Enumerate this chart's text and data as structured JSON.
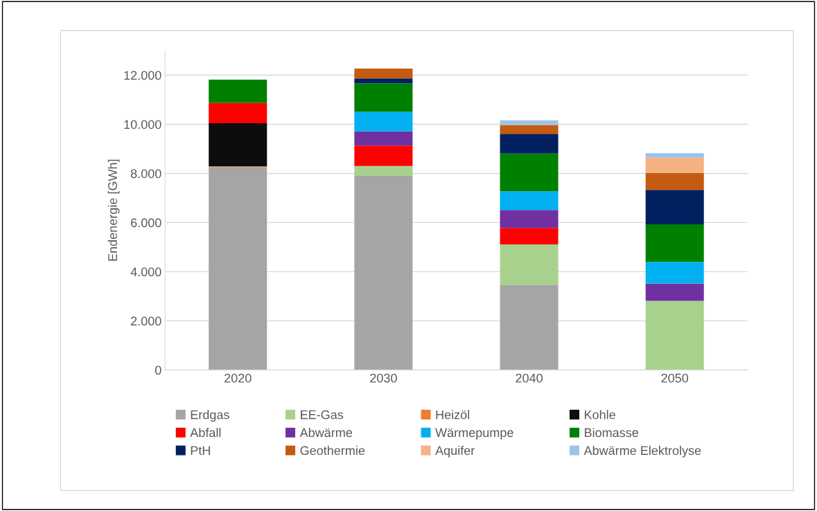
{
  "chart_data": {
    "type": "bar",
    "stacked": true,
    "ylabel": "Endenergie [GWh]",
    "categories": [
      "2020",
      "2030",
      "2040",
      "2050"
    ],
    "ylim": [
      0,
      13000
    ],
    "yticks": [
      0,
      {
        "value": 2000,
        "label": "2.000"
      },
      {
        "value": 4000,
        "label": "4.000"
      },
      {
        "value": 6000,
        "label": "6.000"
      },
      {
        "value": 8000,
        "label": "8.000"
      },
      {
        "value": 10000,
        "label": "10.000"
      },
      {
        "value": 12000,
        "label": "12.000"
      }
    ],
    "grid": "y",
    "legend": "bottom",
    "series": [
      {
        "name": "Erdgas",
        "color": "#a5a5a5",
        "values": [
          8250,
          7900,
          3470,
          0
        ]
      },
      {
        "name": "EE-Gas",
        "color": "#a9d18e",
        "values": [
          0,
          400,
          1640,
          2810
        ]
      },
      {
        "name": "Heizöl",
        "color": "#ed7d31",
        "values": [
          40,
          0,
          0,
          0
        ]
      },
      {
        "name": "Kohle",
        "color": "#0d0d0d",
        "values": [
          1750,
          0,
          0,
          0
        ]
      },
      {
        "name": "Abfall",
        "color": "#ff0000",
        "values": [
          830,
          830,
          670,
          0
        ]
      },
      {
        "name": "Abwärme",
        "color": "#7030a0",
        "values": [
          0,
          580,
          730,
          710
        ]
      },
      {
        "name": "Wärmepumpe",
        "color": "#00b0f0",
        "values": [
          0,
          800,
          760,
          880
        ]
      },
      {
        "name": "Biomasse",
        "color": "#008000",
        "values": [
          950,
          1150,
          1540,
          1530
        ]
      },
      {
        "name": "PtH",
        "color": "#002060",
        "values": [
          0,
          210,
          800,
          1400
        ]
      },
      {
        "name": "Geothermie",
        "color": "#c55a11",
        "values": [
          0,
          400,
          360,
          690
        ]
      },
      {
        "name": "Aquifer",
        "color": "#f4b183",
        "values": [
          0,
          0,
          0,
          620
        ]
      },
      {
        "name": "Abwärme Elektrolyse",
        "color": "#9dc3e6",
        "values": [
          0,
          0,
          190,
          180
        ]
      }
    ]
  }
}
